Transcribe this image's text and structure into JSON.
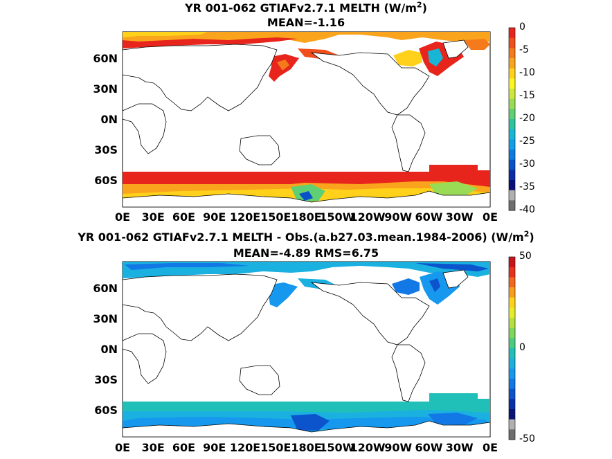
{
  "panels": [
    {
      "title_line1": "YR 001-062 GTIAFv2.7.1  MELTH (W/m",
      "title_sup": "2",
      "title_close": ")",
      "title_line2": "MEAN=-1.16",
      "colorbar_labels": [
        "0",
        "-5",
        "-10",
        "-15",
        "-20",
        "-25",
        "-30",
        "-35",
        "-40"
      ],
      "colorbar_colors": [
        "#e8251c",
        "#f04f1c",
        "#f47a1c",
        "#f9a41c",
        "#ffd11a",
        "#fdf522",
        "#cde83a",
        "#99db55",
        "#5fcf73",
        "#2ec39f",
        "#18b6d6",
        "#10a0ea",
        "#0a7ce0",
        "#0a52c8",
        "#0a2ea6",
        "#0a1078",
        "#b0b0b0",
        "#6e6e6e"
      ]
    },
    {
      "title_line1": "YR 001-062 GTIAFv2.7.1 MELTH - Obs.(a.b27.03.mean.1984-2006) (W/m",
      "title_sup": "2",
      "title_close": ")",
      "title_line2": "MEAN=-4.89 RMS=6.75",
      "colorbar_labels": [
        "50",
        "0",
        "-50"
      ],
      "colorbar_colors": [
        "#c8141a",
        "#e8301c",
        "#f4661c",
        "#f99e1c",
        "#fdd21a",
        "#e6ec2a",
        "#b5e040",
        "#7fd65c",
        "#4ccc80",
        "#20c0b8",
        "#1ab0e0",
        "#1698ee",
        "#1278e6",
        "#0c54cc",
        "#0a30a8",
        "#0a1478",
        "#b0b0b0",
        "#6e6e6e"
      ]
    }
  ],
  "y_axis_labels": [
    "60N",
    "30N",
    "0N",
    "30S",
    "60S"
  ],
  "x_axis_labels": [
    "0E",
    "30E",
    "60E",
    "90E",
    "120E",
    "150E",
    "180E",
    "150W",
    "120W",
    "90W",
    "60W",
    "30W",
    "0E"
  ]
}
